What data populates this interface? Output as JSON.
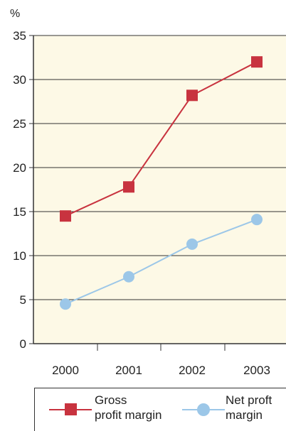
{
  "chart_data": {
    "type": "line",
    "unit_label": "%",
    "categories": [
      "2000",
      "2001",
      "2002",
      "2003"
    ],
    "ylim": [
      0,
      35
    ],
    "yticks": [
      0,
      5,
      10,
      15,
      20,
      25,
      30,
      35
    ],
    "grid": true,
    "plot_background": "#fdf9e6",
    "legend_position": "bottom",
    "series": [
      {
        "name": "Gross profit margin",
        "legend_lines": [
          "Gross",
          "profit margin"
        ],
        "values": [
          14.5,
          17.8,
          28.2,
          32.0
        ],
        "color": "#c8333f",
        "marker": "square"
      },
      {
        "name": "Net proft margin",
        "legend_lines": [
          "Net proft",
          "margin"
        ],
        "values": [
          4.5,
          7.6,
          11.3,
          14.1
        ],
        "color": "#9cc7e8",
        "marker": "circle"
      }
    ]
  }
}
